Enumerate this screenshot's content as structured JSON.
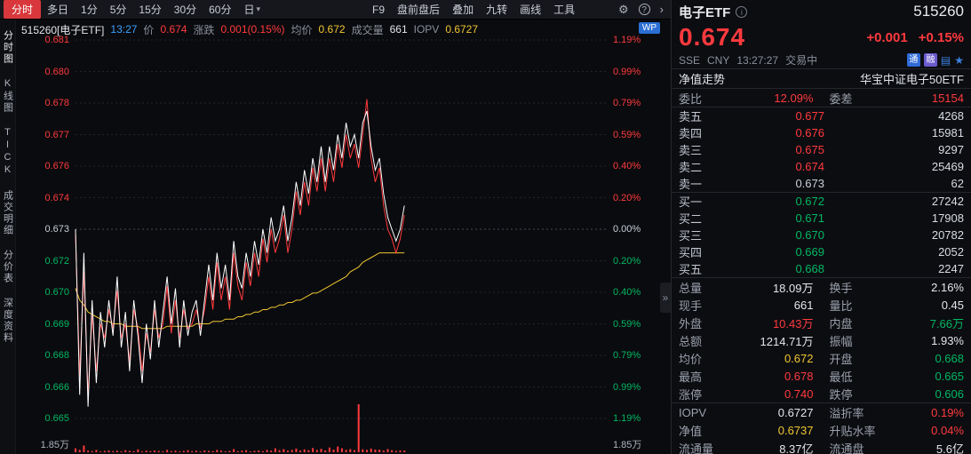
{
  "colors": {
    "up": "#ff3a3e",
    "down": "#00b864",
    "avg": "#f0c633",
    "blue": "#3ba1ff"
  },
  "toolbar": {
    "items": [
      {
        "key": "timeshare",
        "label": "分时",
        "active": true
      },
      {
        "key": "multi-day",
        "label": "多日"
      },
      {
        "key": "1min",
        "label": "1分"
      },
      {
        "key": "5min",
        "label": "5分"
      },
      {
        "key": "15min",
        "label": "15分"
      },
      {
        "key": "30min",
        "label": "30分"
      },
      {
        "key": "60min",
        "label": "60分"
      },
      {
        "key": "daily",
        "label": "日",
        "caret": "▾"
      },
      {
        "key": "f9",
        "label": "F9",
        "gap": true
      },
      {
        "key": "pre-post-market",
        "label": "盘前盘后"
      },
      {
        "key": "overlay",
        "label": "叠加"
      },
      {
        "key": "nine-turn",
        "label": "九转"
      },
      {
        "key": "draw-line",
        "label": "画线"
      },
      {
        "key": "tools",
        "label": "工具"
      }
    ],
    "icons": [
      {
        "key": "settings",
        "glyph": "⚙"
      },
      {
        "key": "help",
        "glyph": "?"
      },
      {
        "key": "more",
        "glyph": "›"
      }
    ]
  },
  "sidebar": {
    "items": [
      {
        "key": "timeshare-chart",
        "label": "分时图",
        "active": true
      },
      {
        "key": "kline-chart",
        "label": "K线图"
      },
      {
        "key": "tick",
        "label": "TICK"
      },
      {
        "key": "trade-detail",
        "label": "成交明细"
      },
      {
        "key": "price-distribution",
        "label": "分价表"
      },
      {
        "key": "depth-info",
        "label": "深度资料"
      }
    ]
  },
  "chart": {
    "info_parts": [
      {
        "text": "515260[电子ETF]",
        "cls": "w"
      },
      {
        "text": "13:27",
        "cls": "time"
      },
      {
        "text": "价",
        "cls": "lbl"
      },
      {
        "text": "0.674",
        "cls": "up"
      },
      {
        "text": "涨跌",
        "cls": "lbl"
      },
      {
        "text": "0.001(0.15%)",
        "cls": "up"
      },
      {
        "text": "均价",
        "cls": "lbl"
      },
      {
        "text": "0.672",
        "cls": "avg"
      },
      {
        "text": "成交量",
        "cls": "lbl"
      },
      {
        "text": "661",
        "cls": "w"
      },
      {
        "text": "IOPV",
        "cls": "lbl"
      },
      {
        "text": "0.6727",
        "cls": "avg"
      }
    ],
    "info_badge": "WP",
    "left_axis": [
      {
        "text": "0.681",
        "tone": "up"
      },
      {
        "text": "0.680",
        "tone": "up"
      },
      {
        "text": "0.678",
        "tone": "up"
      },
      {
        "text": "0.677",
        "tone": "up"
      },
      {
        "text": "0.676",
        "tone": "up"
      },
      {
        "text": "0.674",
        "tone": "up"
      },
      {
        "text": "0.673",
        "tone": "flat"
      },
      {
        "text": "0.672",
        "tone": "down"
      },
      {
        "text": "0.670",
        "tone": "down"
      },
      {
        "text": "0.669",
        "tone": "down"
      },
      {
        "text": "0.668",
        "tone": "down"
      },
      {
        "text": "0.666",
        "tone": "down"
      },
      {
        "text": "0.665",
        "tone": "down"
      }
    ],
    "right_axis": [
      {
        "text": "1.19%",
        "tone": "up"
      },
      {
        "text": "0.99%",
        "tone": "up"
      },
      {
        "text": "0.79%",
        "tone": "up"
      },
      {
        "text": "0.59%",
        "tone": "up"
      },
      {
        "text": "0.40%",
        "tone": "up"
      },
      {
        "text": "0.20%",
        "tone": "up"
      },
      {
        "text": "0.00%",
        "tone": "flat"
      },
      {
        "text": "0.20%",
        "tone": "down"
      },
      {
        "text": "0.40%",
        "tone": "down"
      },
      {
        "text": "0.59%",
        "tone": "down"
      },
      {
        "text": "0.79%",
        "tone": "down"
      },
      {
        "text": "0.99%",
        "tone": "down"
      },
      {
        "text": "1.19%",
        "tone": "down"
      }
    ],
    "vol_axis_left": "1.85万",
    "vol_axis_right": "1.85万"
  },
  "chart_data": {
    "type": "line",
    "title": "515260 电子ETF 分时走势",
    "prev_close": 0.673,
    "y_min": 0.665,
    "y_max": 0.681,
    "x_fill_ratio": 0.617,
    "series": [
      {
        "name": "price",
        "color": "#ffffff",
        "values": [
          0.673,
          0.666,
          0.672,
          0.6655,
          0.67,
          0.6665,
          0.6695,
          0.668,
          0.67,
          0.6685,
          0.671,
          0.668,
          0.6695,
          0.667,
          0.67,
          0.6685,
          0.6665,
          0.669,
          0.6675,
          0.67,
          0.668,
          0.6695,
          0.671,
          0.669,
          0.6705,
          0.668,
          0.67,
          0.6685,
          0.6695,
          0.67,
          0.6685,
          0.67,
          0.6715,
          0.67,
          0.672,
          0.6705,
          0.6715,
          0.67,
          0.6725,
          0.671,
          0.6705,
          0.672,
          0.671,
          0.6725,
          0.6715,
          0.673,
          0.672,
          0.6735,
          0.6725,
          0.673,
          0.674,
          0.6725,
          0.6735,
          0.675,
          0.674,
          0.6755,
          0.6745,
          0.676,
          0.675,
          0.6765,
          0.675,
          0.6765,
          0.6755,
          0.677,
          0.676,
          0.6775,
          0.6765,
          0.677,
          0.676,
          0.6775,
          0.678,
          0.6765,
          0.6755,
          0.676,
          0.6745,
          0.6735,
          0.673,
          0.6725,
          0.673,
          0.674
        ]
      },
      {
        "name": "net_value",
        "color": "#ff3a3e",
        "values": [
          0.6728,
          0.6668,
          0.6712,
          0.666,
          0.6694,
          0.667,
          0.669,
          0.6684,
          0.6696,
          0.6688,
          0.6704,
          0.6684,
          0.669,
          0.6674,
          0.6696,
          0.6688,
          0.667,
          0.6686,
          0.6678,
          0.6696,
          0.6684,
          0.669,
          0.6706,
          0.6686,
          0.67,
          0.6684,
          0.6696,
          0.6688,
          0.669,
          0.6696,
          0.6688,
          0.6696,
          0.671,
          0.6696,
          0.6716,
          0.67,
          0.671,
          0.6696,
          0.672,
          0.6706,
          0.67,
          0.6716,
          0.6706,
          0.672,
          0.671,
          0.6726,
          0.6716,
          0.673,
          0.672,
          0.6726,
          0.6736,
          0.672,
          0.673,
          0.6746,
          0.6736,
          0.675,
          0.674,
          0.6756,
          0.6746,
          0.676,
          0.6746,
          0.676,
          0.675,
          0.6766,
          0.6756,
          0.677,
          0.676,
          0.6766,
          0.6756,
          0.677,
          0.6785,
          0.676,
          0.675,
          0.6756,
          0.674,
          0.673,
          0.6726,
          0.672,
          0.6726,
          0.6736
        ]
      },
      {
        "name": "avg_price",
        "color": "#f0c633",
        "values": [
          0.6705,
          0.67,
          0.6698,
          0.6695,
          0.6694,
          0.6693,
          0.6692,
          0.6691,
          0.6691,
          0.669,
          0.669,
          0.669,
          0.6689,
          0.6689,
          0.6689,
          0.6689,
          0.6688,
          0.6688,
          0.6688,
          0.6688,
          0.6688,
          0.6688,
          0.6689,
          0.6689,
          0.6689,
          0.6689,
          0.6689,
          0.6689,
          0.6689,
          0.669,
          0.669,
          0.669,
          0.669,
          0.6691,
          0.6691,
          0.6691,
          0.6692,
          0.6692,
          0.6692,
          0.6693,
          0.6693,
          0.6694,
          0.6694,
          0.6695,
          0.6695,
          0.6696,
          0.6696,
          0.6697,
          0.6697,
          0.6698,
          0.6698,
          0.6699,
          0.6699,
          0.67,
          0.67,
          0.6701,
          0.6702,
          0.6703,
          0.6703,
          0.6704,
          0.6705,
          0.6706,
          0.6707,
          0.6708,
          0.6709,
          0.671,
          0.6712,
          0.6713,
          0.6714,
          0.6716,
          0.6717,
          0.6718,
          0.6719,
          0.672,
          0.672,
          0.672,
          0.672,
          0.672,
          0.672,
          0.672
        ]
      }
    ],
    "volume": {
      "color": "#ff3a3e",
      "max": 18500,
      "values": [
        1500,
        900,
        2600,
        600,
        400,
        900,
        300,
        500,
        700,
        400,
        600,
        300,
        800,
        500,
        400,
        1100,
        300,
        600,
        400,
        700,
        500,
        300,
        900,
        400,
        600,
        300,
        500,
        800,
        400,
        600,
        300,
        700,
        500,
        400,
        900,
        600,
        300,
        500,
        1200,
        400,
        600,
        800,
        300,
        500,
        700,
        400,
        900,
        600,
        1500,
        800,
        1200,
        600,
        900,
        1400,
        700,
        1100,
        800,
        1600,
        900,
        1300,
        700,
        1800,
        1000,
        2200,
        1500,
        900,
        1200,
        800,
        18500,
        1100,
        900,
        1400,
        1000,
        1000,
        600,
        1200,
        800,
        500,
        700,
        661
      ]
    }
  },
  "panel": {
    "name": "电子ETF",
    "info_icon_glyph": "i",
    "code": "515260",
    "price": "0.674",
    "change": "+0.001",
    "change_pct": "+0.15%",
    "exchange": "SSE",
    "currency": "CNY",
    "time": "13:27:27",
    "status": "交易中",
    "badges": [
      {
        "key": "tong-badge",
        "glyph": "通",
        "bg": "#2f6bd8"
      },
      {
        "key": "rong-badge",
        "glyph": "融",
        "bg": "#6a5acd"
      }
    ],
    "mini_icons": [
      {
        "key": "doc-icon",
        "glyph": "▤"
      },
      {
        "key": "star-icon",
        "glyph": "★"
      }
    ],
    "nav_title": "净值走势",
    "fund_name": "华宝中证电子50ETF",
    "weibi_label": "委比",
    "weibi": "12.09%",
    "weicha_label": "委差",
    "weicha": "15154",
    "sells": [
      {
        "key": "sell-5",
        "label": "卖五",
        "price": "0.677",
        "tone": "up",
        "vol": "4268"
      },
      {
        "key": "sell-4",
        "label": "卖四",
        "price": "0.676",
        "tone": "up",
        "vol": "15981"
      },
      {
        "key": "sell-3",
        "label": "卖三",
        "price": "0.675",
        "tone": "up",
        "vol": "9297"
      },
      {
        "key": "sell-2",
        "label": "卖二",
        "price": "0.674",
        "tone": "up",
        "vol": "25469"
      },
      {
        "key": "sell-1",
        "label": "卖一",
        "price": "0.673",
        "tone": "flat",
        "vol": "62"
      }
    ],
    "buys": [
      {
        "key": "buy-1",
        "label": "买一",
        "price": "0.672",
        "tone": "down",
        "vol": "27242"
      },
      {
        "key": "buy-2",
        "label": "买二",
        "price": "0.671",
        "tone": "down",
        "vol": "17908"
      },
      {
        "key": "buy-3",
        "label": "买三",
        "price": "0.670",
        "tone": "down",
        "vol": "20782"
      },
      {
        "key": "buy-4",
        "label": "买四",
        "price": "0.669",
        "tone": "down",
        "vol": "2052"
      },
      {
        "key": "buy-5",
        "label": "买五",
        "price": "0.668",
        "tone": "down",
        "vol": "2247"
      }
    ],
    "stats_primary": [
      [
        {
          "key": "total-volume",
          "label": "总量",
          "value": "18.09万",
          "tone": "flat"
        },
        {
          "key": "turnover-rate",
          "label": "换手",
          "value": "2.16%",
          "tone": "flat"
        }
      ],
      [
        {
          "key": "current-volume",
          "label": "现手",
          "value": "661",
          "tone": "flat"
        },
        {
          "key": "volume-ratio",
          "label": "量比",
          "value": "0.45",
          "tone": "flat"
        }
      ],
      [
        {
          "key": "outer-volume",
          "label": "外盘",
          "value": "10.43万",
          "tone": "up"
        },
        {
          "key": "inner-volume",
          "label": "内盘",
          "value": "7.66万",
          "tone": "down"
        }
      ],
      [
        {
          "key": "total-amount",
          "label": "总额",
          "value": "1214.71万",
          "tone": "flat"
        },
        {
          "key": "amplitude",
          "label": "振幅",
          "value": "1.93%",
          "tone": "flat"
        }
      ],
      [
        {
          "key": "avg-price",
          "label": "均价",
          "value": "0.672",
          "tone": "avg"
        },
        {
          "key": "open-price",
          "label": "开盘",
          "value": "0.668",
          "tone": "down"
        }
      ],
      [
        {
          "key": "high-price",
          "label": "最高",
          "value": "0.678",
          "tone": "up"
        },
        {
          "key": "low-price",
          "label": "最低",
          "value": "0.665",
          "tone": "down"
        }
      ],
      [
        {
          "key": "limit-up",
          "label": "涨停",
          "value": "0.740",
          "tone": "up"
        },
        {
          "key": "limit-down",
          "label": "跌停",
          "value": "0.606",
          "tone": "down"
        }
      ]
    ],
    "stats_secondary": [
      [
        {
          "key": "iopv",
          "label": "IOPV",
          "value": "0.6727",
          "tone": "flat"
        },
        {
          "key": "premium-rate",
          "label": "溢折率",
          "value": "0.19%",
          "tone": "up"
        }
      ],
      [
        {
          "key": "nav",
          "label": "净值",
          "value": "0.6737",
          "tone": "avg"
        },
        {
          "key": "premium-discount-rate",
          "label": "升贴水率",
          "value": "0.04%",
          "tone": "up"
        }
      ],
      [
        {
          "key": "float-shares",
          "label": "流通量",
          "value": "8.37亿",
          "tone": "flat"
        },
        {
          "key": "float-cap",
          "label": "流通盘",
          "value": "5.6亿",
          "tone": "flat"
        }
      ]
    ]
  },
  "misc": {
    "collapse_glyph": "»"
  }
}
